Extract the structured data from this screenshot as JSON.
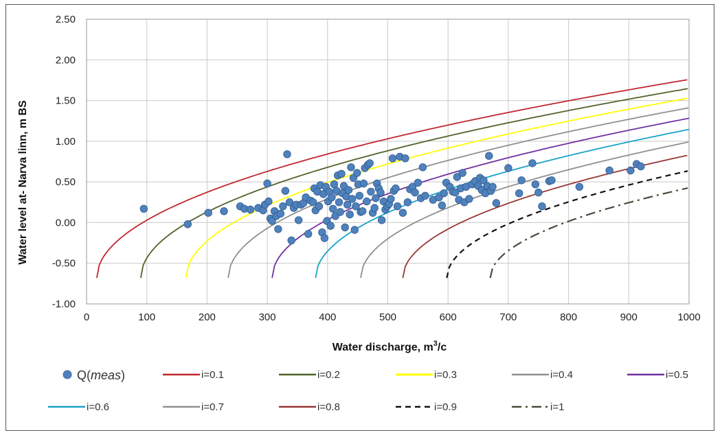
{
  "chart_data": {
    "type": "scatter",
    "title": "",
    "xlabel": "Water discharge, m",
    "xlabel_sup": "3",
    "xlabel_tail": "/c",
    "ylabel": "Water level  at- Narva linn, m BS",
    "xlim": [
      0,
      1000
    ],
    "ylim": [
      -1.0,
      2.5
    ],
    "x_ticks": [
      "0",
      "100",
      "200",
      "300",
      "400",
      "500",
      "600",
      "700",
      "800",
      "900",
      "1000"
    ],
    "y_ticks": [
      "2.50",
      "2.00",
      "1.50",
      "1.00",
      "0.50",
      "0.00",
      "-0.50",
      "-1.00"
    ],
    "grid": true,
    "legend_position": "bottom",
    "scatter": {
      "name": "Q(meas)",
      "name_prefix": "Q(",
      "name_italic": "meas",
      "name_suffix": ")",
      "color": "#4f81bd",
      "points": [
        [
          95,
          0.17
        ],
        [
          168,
          -0.02
        ],
        [
          202,
          0.12
        ],
        [
          228,
          0.14
        ],
        [
          255,
          0.2
        ],
        [
          262,
          0.17
        ],
        [
          272,
          0.16
        ],
        [
          285,
          0.18
        ],
        [
          293,
          0.15
        ],
        [
          296,
          0.22
        ],
        [
          300,
          0.48
        ],
        [
          302,
          0.26
        ],
        [
          305,
          0.05
        ],
        [
          308,
          0.02
        ],
        [
          312,
          0.14
        ],
        [
          315,
          0.08
        ],
        [
          318,
          -0.08
        ],
        [
          322,
          0.11
        ],
        [
          326,
          0.2
        ],
        [
          330,
          0.39
        ],
        [
          333,
          0.84
        ],
        [
          337,
          0.25
        ],
        [
          340,
          -0.22
        ],
        [
          344,
          0.18
        ],
        [
          348,
          0.22
        ],
        [
          352,
          0.03
        ],
        [
          356,
          0.22
        ],
        [
          360,
          0.24
        ],
        [
          364,
          0.31
        ],
        [
          368,
          -0.14
        ],
        [
          372,
          0.27
        ],
        [
          376,
          0.25
        ],
        [
          378,
          0.42
        ],
        [
          380,
          0.15
        ],
        [
          383,
          0.38
        ],
        [
          386,
          0.2
        ],
        [
          388,
          0.46
        ],
        [
          391,
          -0.12
        ],
        [
          393,
          0.35
        ],
        [
          395,
          -0.19
        ],
        [
          397,
          0.44
        ],
        [
          399,
          0.02
        ],
        [
          401,
          0.26
        ],
        [
          403,
          0.38
        ],
        [
          405,
          -0.04
        ],
        [
          407,
          0.31
        ],
        [
          409,
          0.17
        ],
        [
          411,
          0.47
        ],
        [
          413,
          0.08
        ],
        [
          415,
          0.39
        ],
        [
          417,
          0.58
        ],
        [
          419,
          0.25
        ],
        [
          421,
          0.13
        ],
        [
          423,
          0.6
        ],
        [
          425,
          0.36
        ],
        [
          427,
          0.45
        ],
        [
          429,
          -0.06
        ],
        [
          431,
          0.32
        ],
        [
          433,
          0.22
        ],
        [
          435,
          0.4
        ],
        [
          437,
          0.1
        ],
        [
          439,
          0.68
        ],
        [
          441,
          0.29
        ],
        [
          443,
          0.55
        ],
        [
          445,
          -0.09
        ],
        [
          447,
          0.2
        ],
        [
          449,
          0.61
        ],
        [
          451,
          0.47
        ],
        [
          453,
          0.33
        ],
        [
          455,
          0.13
        ],
        [
          458,
          0.14
        ],
        [
          460,
          0.48
        ],
        [
          462,
          0.67
        ],
        [
          465,
          0.26
        ],
        [
          467,
          0.71
        ],
        [
          470,
          0.73
        ],
        [
          472,
          0.38
        ],
        [
          475,
          0.12
        ],
        [
          478,
          0.18
        ],
        [
          480,
          0.3
        ],
        [
          482,
          0.48
        ],
        [
          485,
          0.42
        ],
        [
          488,
          0.37
        ],
        [
          490,
          0.03
        ],
        [
          493,
          0.26
        ],
        [
          496,
          0.16
        ],
        [
          499,
          0.2
        ],
        [
          502,
          0.23
        ],
        [
          505,
          0.29
        ],
        [
          508,
          0.79
        ],
        [
          510,
          0.39
        ],
        [
          513,
          0.42
        ],
        [
          516,
          0.2
        ],
        [
          520,
          0.81
        ],
        [
          525,
          0.12
        ],
        [
          529,
          0.79
        ],
        [
          533,
          0.25
        ],
        [
          537,
          0.41
        ],
        [
          541,
          0.44
        ],
        [
          545,
          0.37
        ],
        [
          550,
          0.49
        ],
        [
          555,
          0.3
        ],
        [
          558,
          0.68
        ],
        [
          562,
          0.33
        ],
        [
          575,
          0.28
        ],
        [
          585,
          0.31
        ],
        [
          590,
          0.21
        ],
        [
          593,
          0.36
        ],
        [
          597,
          0.49
        ],
        [
          603,
          0.44
        ],
        [
          608,
          0.38
        ],
        [
          612,
          0.37
        ],
        [
          615,
          0.56
        ],
        [
          618,
          0.28
        ],
        [
          621,
          0.42
        ],
        [
          624,
          0.61
        ],
        [
          627,
          0.25
        ],
        [
          630,
          0.44
        ],
        [
          635,
          0.29
        ],
        [
          640,
          0.47
        ],
        [
          645,
          0.51
        ],
        [
          650,
          0.45
        ],
        [
          653,
          0.55
        ],
        [
          656,
          0.4
        ],
        [
          659,
          0.52
        ],
        [
          662,
          0.36
        ],
        [
          665,
          0.45
        ],
        [
          668,
          0.82
        ],
        [
          671,
          0.39
        ],
        [
          674,
          0.44
        ],
        [
          680,
          0.24
        ],
        [
          700,
          0.67
        ],
        [
          718,
          0.36
        ],
        [
          722,
          0.52
        ],
        [
          740,
          0.73
        ],
        [
          745,
          0.47
        ],
        [
          750,
          0.37
        ],
        [
          756,
          0.2
        ],
        [
          768,
          0.51
        ],
        [
          772,
          0.52
        ],
        [
          818,
          0.44
        ],
        [
          868,
          0.64
        ],
        [
          903,
          0.64
        ],
        [
          913,
          0.72
        ],
        [
          920,
          0.69
        ]
      ]
    },
    "series": [
      {
        "name": "i=0.1",
        "color": "#c0262c",
        "dash": "solid",
        "a": 0.0778,
        "b": 1.02,
        "x0": 17
      },
      {
        "name": "i=0.2",
        "color": "#4f6228",
        "dash": "solid",
        "a": 0.0772,
        "b": 1.06,
        "x0": 90
      },
      {
        "name": "i=0.3",
        "color": "#ffff00",
        "dash": "solid",
        "a": 0.0765,
        "b": 1.12,
        "x0": 165
      },
      {
        "name": "i=0.4",
        "color": "#8f8f8f",
        "dash": "solid",
        "a": 0.0756,
        "b": 1.2,
        "x0": 235
      },
      {
        "name": "i=0.5",
        "color": "#7030a0",
        "dash": "solid",
        "a": 0.0746,
        "b": 1.3,
        "x0": 308
      },
      {
        "name": "i=0.6",
        "color": "#17a3c8",
        "dash": "solid",
        "a": 0.0733,
        "b": 1.42,
        "x0": 380
      },
      {
        "name": "i=0.7",
        "color": "#8f8f8f",
        "dash": "solid",
        "a": 0.0716,
        "b": 1.56,
        "x0": 455
      },
      {
        "name": "i=0.8",
        "color": "#953735",
        "dash": "solid",
        "a": 0.0693,
        "b": 1.73,
        "x0": 525
      },
      {
        "name": "i=0.9",
        "color": "#111111",
        "dash": "dash",
        "a": 0.0657,
        "b": 1.93,
        "x0": 598
      },
      {
        "name": "i=1",
        "color": "#4a4a3a",
        "dash": "dashdot",
        "a": 0.061,
        "b": 2.16,
        "x0": 670
      }
    ],
    "legend_line_names": [
      "i=0.1",
      "i=0.2",
      "i=0.3",
      "i=0.4",
      "i=0.5",
      "i=0.6",
      "i=0.7",
      "i=0.8",
      "i=0.9",
      "i=1"
    ]
  }
}
